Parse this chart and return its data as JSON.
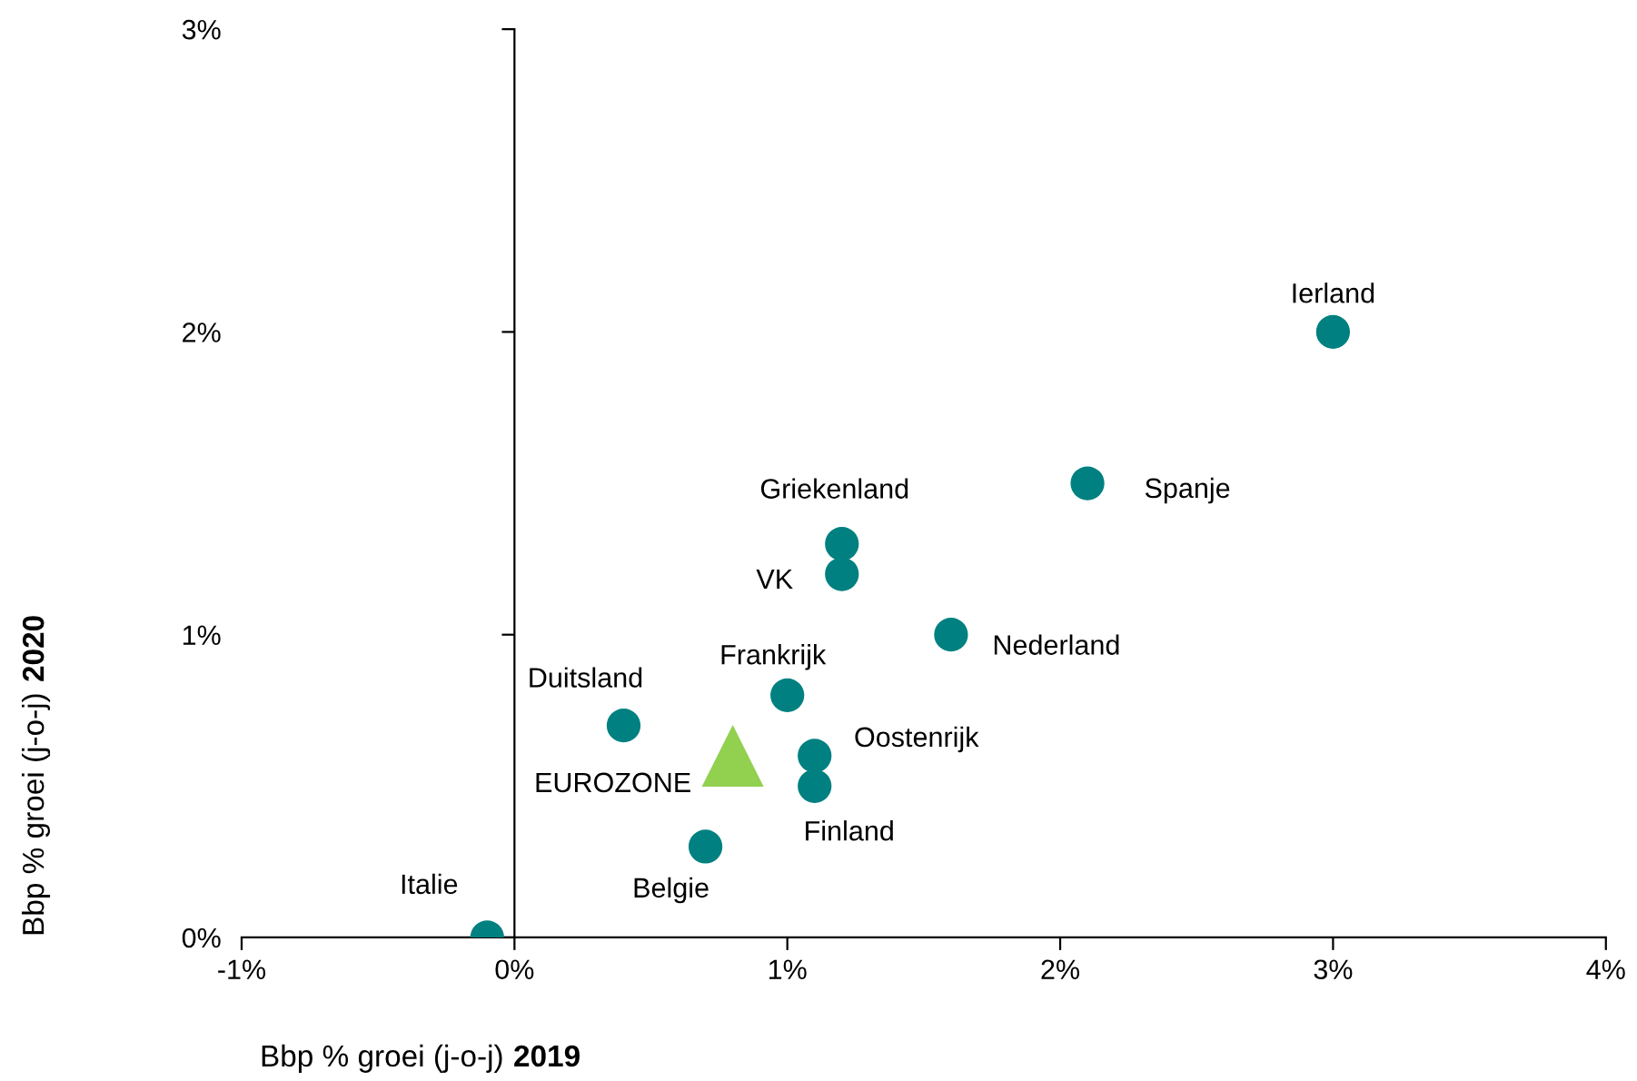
{
  "chart_data": {
    "type": "scatter",
    "xlabel": "Bbp % groei (j-o-j) 2019",
    "ylabel": "Bbp % groei (j-o-j) 2020",
    "xlim": [
      -1,
      4
    ],
    "ylim": [
      0,
      3
    ],
    "xticks": [
      {
        "value": -1,
        "label": "-1%"
      },
      {
        "value": 0,
        "label": "0%"
      },
      {
        "value": 1,
        "label": "1%"
      },
      {
        "value": 2,
        "label": "2%"
      },
      {
        "value": 3,
        "label": "3%"
      },
      {
        "value": 4,
        "label": "4%"
      }
    ],
    "yticks": [
      {
        "value": 0,
        "label": "0%"
      },
      {
        "value": 1,
        "label": "1%"
      },
      {
        "value": 2,
        "label": "2%"
      },
      {
        "value": 3,
        "label": "3%"
      }
    ],
    "legend": false,
    "series": [
      {
        "color": "#008080",
        "marker": "circle",
        "x": [
          3.0,
          2.1,
          1.2,
          1.2,
          1.6,
          1.0,
          0.4,
          1.1,
          1.1,
          0.7,
          -0.1
        ],
        "values": [
          2.0,
          1.5,
          1.3,
          1.2,
          1.0,
          0.8,
          0.7,
          0.6,
          0.5,
          0.3,
          0.0
        ]
      },
      {
        "color": "#92d050",
        "marker": "triangle",
        "x": [
          0.8
        ],
        "values": [
          0.6
        ]
      }
    ],
    "annotations": [
      {
        "text": "Ierland",
        "x": 3.0,
        "y": 2.0
      },
      {
        "text": "Spanje",
        "x": 2.1,
        "y": 1.5
      },
      {
        "text": "Griekenland",
        "x": 1.2,
        "y": 1.3
      },
      {
        "text": "VK",
        "x": 1.2,
        "y": 1.2
      },
      {
        "text": "Nederland",
        "x": 1.6,
        "y": 1.0
      },
      {
        "text": "Frankrijk",
        "x": 1.0,
        "y": 0.8
      },
      {
        "text": "Duitsland",
        "x": 0.4,
        "y": 0.7
      },
      {
        "text": "Oostenrijk",
        "x": 1.1,
        "y": 0.6
      },
      {
        "text": "Finland",
        "x": 1.1,
        "y": 0.5
      },
      {
        "text": "Belgie",
        "x": 0.7,
        "y": 0.3
      },
      {
        "text": "Italie",
        "x": -0.1,
        "y": 0.0
      },
      {
        "text": "EUROZONE",
        "x": 0.8,
        "y": 0.6
      }
    ]
  }
}
